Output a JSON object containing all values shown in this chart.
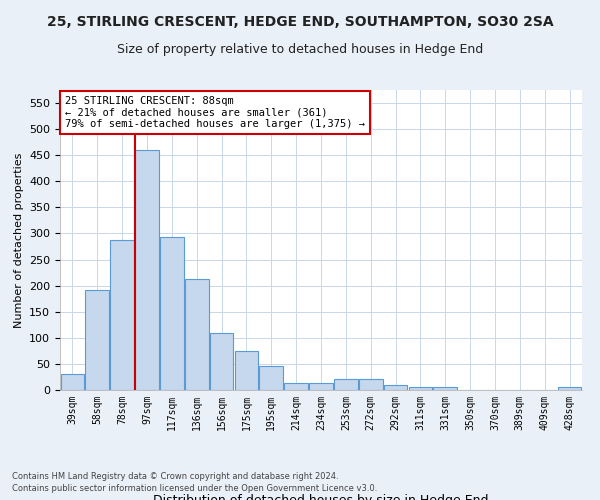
{
  "title1": "25, STIRLING CRESCENT, HEDGE END, SOUTHAMPTON, SO30 2SA",
  "title2": "Size of property relative to detached houses in Hedge End",
  "xlabel": "Distribution of detached houses by size in Hedge End",
  "ylabel": "Number of detached properties",
  "categories": [
    "39sqm",
    "58sqm",
    "78sqm",
    "97sqm",
    "117sqm",
    "136sqm",
    "156sqm",
    "175sqm",
    "195sqm",
    "214sqm",
    "234sqm",
    "253sqm",
    "272sqm",
    "292sqm",
    "311sqm",
    "331sqm",
    "350sqm",
    "370sqm",
    "389sqm",
    "409sqm",
    "428sqm"
  ],
  "values": [
    30,
    192,
    288,
    460,
    293,
    213,
    110,
    75,
    46,
    14,
    13,
    22,
    22,
    9,
    5,
    5,
    0,
    0,
    0,
    0,
    5
  ],
  "bar_color": "#c5d8ed",
  "bar_edge_color": "#5b9bd5",
  "property_line_x": 2.5,
  "annotation_text": "25 STIRLING CRESCENT: 88sqm\n← 21% of detached houses are smaller (361)\n79% of semi-detached houses are larger (1,375) →",
  "annotation_box_color": "#ffffff",
  "annotation_box_edge_color": "#cc0000",
  "ylim": [
    0,
    575
  ],
  "yticks": [
    0,
    50,
    100,
    150,
    200,
    250,
    300,
    350,
    400,
    450,
    500,
    550
  ],
  "footer1": "Contains HM Land Registry data © Crown copyright and database right 2024.",
  "footer2": "Contains public sector information licensed under the Open Government Licence v3.0.",
  "bg_color": "#eaf0f8",
  "plot_bg_color": "#ffffff",
  "grid_color": "#c8d8ea",
  "title1_fontsize": 10,
  "title2_fontsize": 9,
  "ylabel_fontsize": 8,
  "xlabel_fontsize": 9,
  "tick_fontsize": 7,
  "footer_fontsize": 6,
  "annotation_fontsize": 7.5
}
